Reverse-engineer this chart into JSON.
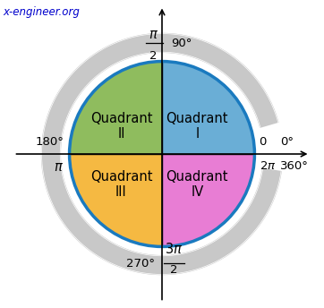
{
  "title": "x-engineer.org",
  "title_color": "#0000cc",
  "bg_color": "#ffffff",
  "circle_color": "#1a7abf",
  "circle_lw": 2.5,
  "quadrant_colors": {
    "I": "#6aaed6",
    "II": "#8fbc5e",
    "III": "#f5b942",
    "IV": "#e87dd4"
  },
  "arrow_color": "#c8c8c8",
  "outer_r": 1.3,
  "inner_r": 1.1,
  "label_fontsize": 9.5,
  "quadrant_fontsize": 10.5,
  "watermark_fontsize": 8.5,
  "xlim": [
    -1.75,
    1.75
  ],
  "ylim": [
    -1.65,
    1.65
  ]
}
